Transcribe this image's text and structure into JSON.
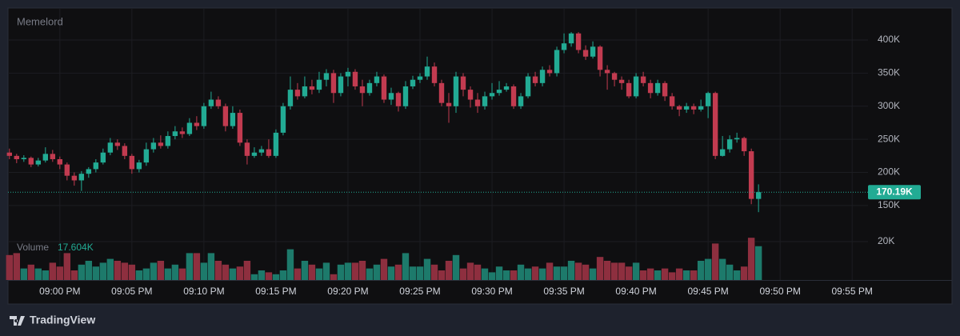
{
  "chart_data": [
    {
      "type": "candlestick",
      "title": "Memelord",
      "x": [
        -3.5,
        -3,
        -2.5,
        -2,
        -1.5,
        -1,
        -0.5,
        0,
        0.5,
        1,
        1.5,
        2,
        2.5,
        3,
        3.5,
        4,
        4.5,
        5,
        5.5,
        6,
        6.5,
        7,
        7.5,
        8,
        8.5,
        9,
        9.5,
        10,
        10.5,
        11,
        11.5,
        12,
        12.5,
        13,
        13.5,
        14,
        14.5,
        15,
        15.5,
        16,
        16.5,
        17,
        17.5,
        18,
        18.5,
        19,
        19.5,
        20,
        20.5,
        21,
        21.5,
        22,
        22.5,
        23,
        23.5,
        24,
        24.5,
        25,
        25.5,
        26,
        26.5,
        27,
        27.5,
        28,
        28.5,
        29,
        29.5,
        30,
        30.5,
        31,
        31.5,
        32,
        32.5,
        33,
        33.5,
        34,
        34.5,
        35,
        35.5,
        36,
        36.5,
        37,
        37.5,
        38,
        38.5,
        39,
        39.5,
        40,
        40.5,
        41,
        41.5,
        42,
        42.5,
        43,
        43.5,
        44,
        44.5,
        45,
        45.5,
        46,
        46.5,
        47,
        47.5,
        48,
        48.5
      ],
      "open": [
        230,
        225,
        220,
        222,
        212,
        218,
        228,
        220,
        212,
        195,
        188,
        198,
        205,
        215,
        230,
        245,
        240,
        225,
        205,
        215,
        235,
        245,
        240,
        255,
        262,
        258,
        275,
        270,
        300,
        310,
        300,
        270,
        290,
        245,
        225,
        230,
        235,
        225,
        260,
        300,
        325,
        315,
        330,
        325,
        340,
        350,
        320,
        345,
        352,
        330,
        320,
        335,
        345,
        310,
        320,
        300,
        330,
        340,
        345,
        360,
        335,
        305,
        300,
        345,
        325,
        310,
        300,
        315,
        320,
        325,
        330,
        300,
        315,
        345,
        335,
        355,
        350,
        385,
        395,
        410,
        385,
        375,
        390,
        355,
        350,
        340,
        335,
        315,
        345,
        335,
        320,
        335,
        315,
        300,
        295,
        300,
        295,
        300,
        320,
        225,
        235,
        250,
        252,
        232,
        160
      ],
      "high": [
        236,
        228,
        226,
        224,
        222,
        238,
        234,
        224,
        215,
        200,
        202,
        208,
        220,
        236,
        252,
        250,
        244,
        228,
        219,
        245,
        252,
        256,
        262,
        270,
        268,
        282,
        285,
        305,
        322,
        315,
        304,
        300,
        295,
        250,
        238,
        240,
        250,
        265,
        305,
        345,
        335,
        345,
        340,
        352,
        356,
        355,
        350,
        358,
        356,
        340,
        340,
        352,
        348,
        328,
        322,
        338,
        346,
        350,
        375,
        366,
        340,
        320,
        352,
        350,
        330,
        320,
        322,
        335,
        338,
        335,
        333,
        320,
        350,
        352,
        360,
        362,
        390,
        410,
        412,
        412,
        392,
        398,
        392,
        362,
        352,
        345,
        340,
        350,
        352,
        340,
        340,
        338,
        320,
        302,
        305,
        304,
        310,
        322,
        322,
        255,
        256,
        260,
        254,
        236,
        182
      ],
      "low": [
        220,
        214,
        216,
        208,
        209,
        215,
        216,
        205,
        188,
        180,
        172,
        192,
        200,
        212,
        226,
        234,
        220,
        198,
        200,
        210,
        230,
        236,
        236,
        250,
        252,
        255,
        264,
        266,
        296,
        296,
        262,
        266,
        240,
        212,
        222,
        225,
        222,
        222,
        256,
        295,
        310,
        312,
        318,
        320,
        330,
        305,
        315,
        330,
        325,
        300,
        316,
        330,
        305,
        302,
        292,
        296,
        326,
        335,
        340,
        330,
        300,
        275,
        290,
        315,
        298,
        290,
        295,
        310,
        316,
        322,
        296,
        296,
        312,
        330,
        330,
        345,
        345,
        380,
        390,
        380,
        370,
        372,
        345,
        325,
        330,
        325,
        312,
        312,
        330,
        312,
        316,
        308,
        295,
        285,
        290,
        288,
        292,
        282,
        220,
        224,
        230,
        245,
        225,
        152,
        140
      ],
      "close": [
        225,
        220,
        222,
        212,
        218,
        228,
        220,
        212,
        195,
        188,
        198,
        205,
        215,
        230,
        245,
        240,
        225,
        205,
        215,
        235,
        245,
        240,
        255,
        262,
        258,
        275,
        270,
        300,
        310,
        300,
        270,
        290,
        245,
        225,
        230,
        235,
        225,
        260,
        300,
        325,
        315,
        330,
        325,
        340,
        350,
        320,
        345,
        352,
        330,
        320,
        335,
        345,
        310,
        320,
        300,
        330,
        340,
        345,
        360,
        335,
        305,
        300,
        345,
        325,
        310,
        300,
        315,
        320,
        325,
        330,
        300,
        315,
        345,
        335,
        355,
        350,
        385,
        395,
        410,
        385,
        375,
        390,
        355,
        350,
        340,
        335,
        315,
        345,
        335,
        320,
        335,
        315,
        300,
        295,
        300,
        295,
        300,
        320,
        225,
        235,
        250,
        252,
        232,
        160,
        170.19
      ],
      "current_label": "170.19K",
      "up_color": "#22ab94",
      "down_color": "#c23b50",
      "xlim": [
        -3.6,
        56.1
      ],
      "xticks": [
        {
          "value": 0,
          "label": "09:00 PM"
        },
        {
          "value": 5,
          "label": "09:05 PM"
        },
        {
          "value": 10,
          "label": "09:10 PM"
        },
        {
          "value": 15,
          "label": "09:15 PM"
        },
        {
          "value": 20,
          "label": "09:20 PM"
        },
        {
          "value": 25,
          "label": "09:25 PM"
        },
        {
          "value": 30,
          "label": "09:30 PM"
        },
        {
          "value": 35,
          "label": "09:35 PM"
        },
        {
          "value": 40,
          "label": "09:40 PM"
        },
        {
          "value": 45,
          "label": "09:45 PM"
        },
        {
          "value": 50,
          "label": "09:50 PM"
        },
        {
          "value": 55,
          "label": "09:55 PM"
        }
      ],
      "ylim": [
        110,
        446
      ],
      "yticks": [
        {
          "value": 150,
          "label": "150K"
        },
        {
          "value": 200,
          "label": "200K"
        },
        {
          "value": 250,
          "label": "250K"
        },
        {
          "value": 300,
          "label": "300K"
        },
        {
          "value": 350,
          "label": "350K"
        },
        {
          "value": 400,
          "label": "400K"
        }
      ],
      "grid": true
    },
    {
      "type": "bar",
      "name": "Volume",
      "x": [
        -3.5,
        -3,
        -2.5,
        -2,
        -1.5,
        -1,
        -0.5,
        0,
        0.5,
        1,
        1.5,
        2,
        2.5,
        3,
        3.5,
        4,
        4.5,
        5,
        5.5,
        6,
        6.5,
        7,
        7.5,
        8,
        8.5,
        9,
        9.5,
        10,
        10.5,
        11,
        11.5,
        12,
        12.5,
        13,
        13.5,
        14,
        14.5,
        15,
        15.5,
        16,
        16.5,
        17,
        17.5,
        18,
        18.5,
        19,
        19.5,
        20,
        20.5,
        21,
        21.5,
        22,
        22.5,
        23,
        23.5,
        24,
        24.5,
        25,
        25.5,
        26,
        26.5,
        27,
        27.5,
        28,
        28.5,
        29,
        29.5,
        30,
        30.5,
        31,
        31.5,
        32,
        32.5,
        33,
        33.5,
        34,
        34.5,
        35,
        35.5,
        36,
        36.5,
        37,
        37.5,
        38,
        38.5,
        39,
        39.5,
        40,
        40.5,
        41,
        41.5,
        42,
        42.5,
        43,
        43.5,
        44,
        44.5,
        45,
        45.5,
        46,
        46.5,
        47,
        47.5,
        48,
        48.5
      ],
      "values": [
        13,
        14,
        6,
        8,
        6,
        5,
        9,
        7,
        14,
        5,
        8,
        10,
        7,
        9,
        11,
        10,
        9,
        8,
        5,
        6,
        9,
        10,
        6,
        8,
        6,
        14,
        14,
        9,
        14,
        10,
        8,
        6,
        7,
        10,
        3,
        5,
        4,
        3,
        5,
        16,
        6,
        10,
        8,
        6,
        9,
        3,
        8,
        9,
        9,
        10,
        6,
        8,
        11,
        7,
        8,
        14,
        7,
        7,
        11,
        8,
        5,
        10,
        13,
        6,
        9,
        8,
        6,
        4,
        7,
        5,
        5,
        8,
        6,
        7,
        6,
        9,
        7,
        7,
        10,
        9,
        8,
        6,
        12,
        10,
        9,
        9,
        7,
        9,
        5,
        6,
        5,
        6,
        4,
        6,
        5,
        5,
        10,
        11,
        19,
        11,
        8,
        5,
        7,
        22,
        17.604
      ],
      "current_label": "17.604K",
      "up_color": "#1d7a6b",
      "down_color": "#8e2f3f",
      "ylim": [
        0,
        25
      ],
      "yticks": [
        {
          "value": 20,
          "label": "20K"
        }
      ],
      "grid": true
    }
  ],
  "footer": {
    "brand": "TradingView"
  }
}
